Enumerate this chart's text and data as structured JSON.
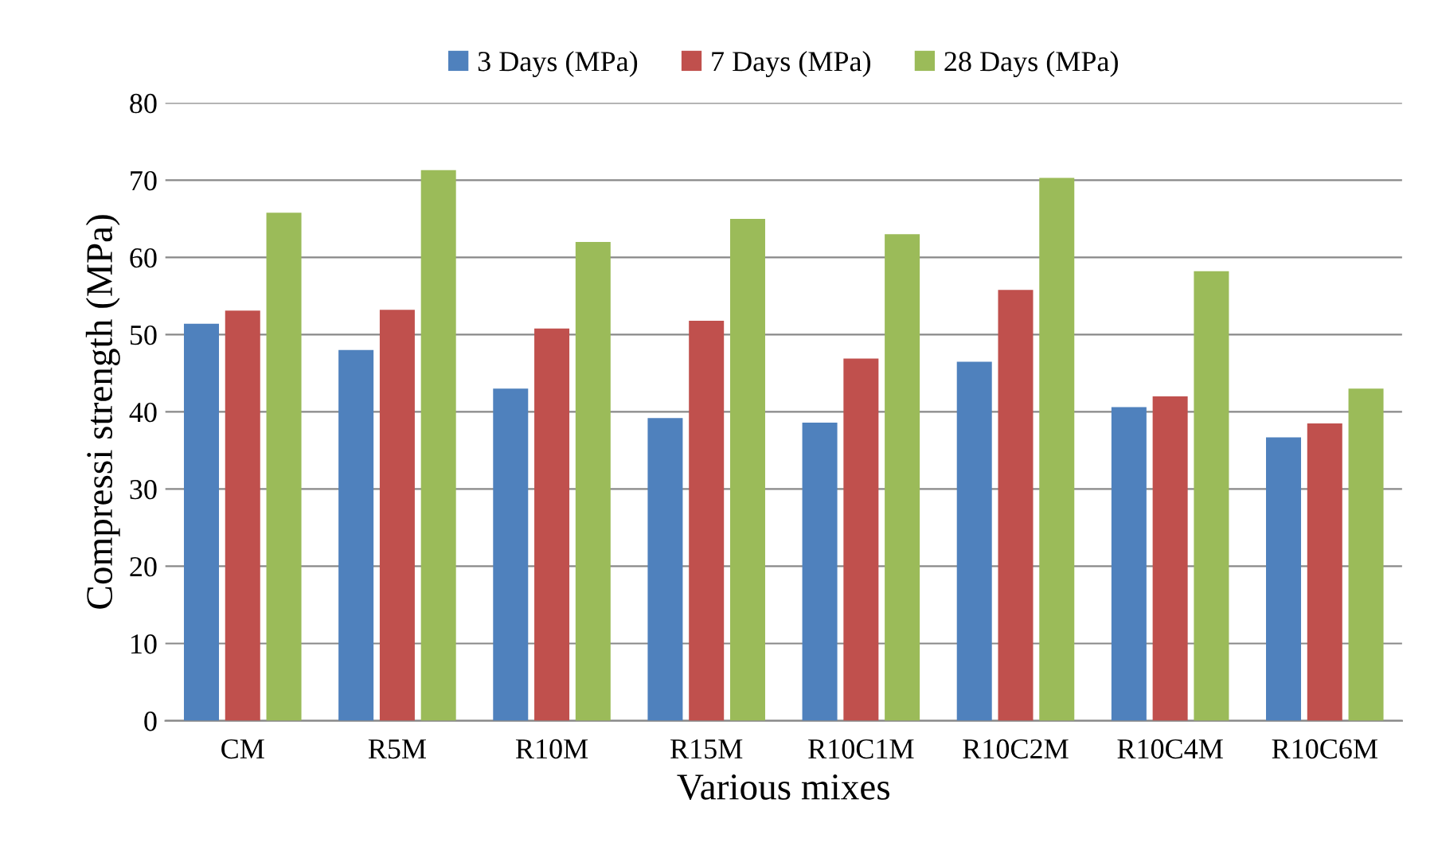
{
  "chart_data": {
    "type": "bar",
    "xlabel": "Various mixes",
    "ylabel": "Compressi strength (MPa)",
    "categories": [
      "CM",
      "R5M",
      "R10M",
      "R15M",
      "R10C1M",
      "R10C2M",
      "R10C4M",
      "R10C6M"
    ],
    "series": [
      {
        "name": "3 Days (MPa)",
        "color": "#4f81bd",
        "values": [
          51.4,
          48,
          43,
          39.2,
          38.6,
          46.5,
          40.6,
          36.7
        ]
      },
      {
        "name": "7 Days (MPa)",
        "color": "#c0504d",
        "values": [
          53.1,
          53.2,
          50.8,
          51.8,
          46.9,
          55.8,
          42,
          38.5
        ]
      },
      {
        "name": "28 Days (MPa)",
        "color": "#9bbb59",
        "values": [
          65.8,
          71.3,
          62,
          65,
          63,
          70.3,
          58.2,
          43
        ]
      }
    ],
    "ylim": [
      0,
      80
    ],
    "yticks": [
      0,
      10,
      20,
      30,
      40,
      50,
      60,
      70,
      80
    ],
    "grid": "y",
    "legend": "top"
  }
}
